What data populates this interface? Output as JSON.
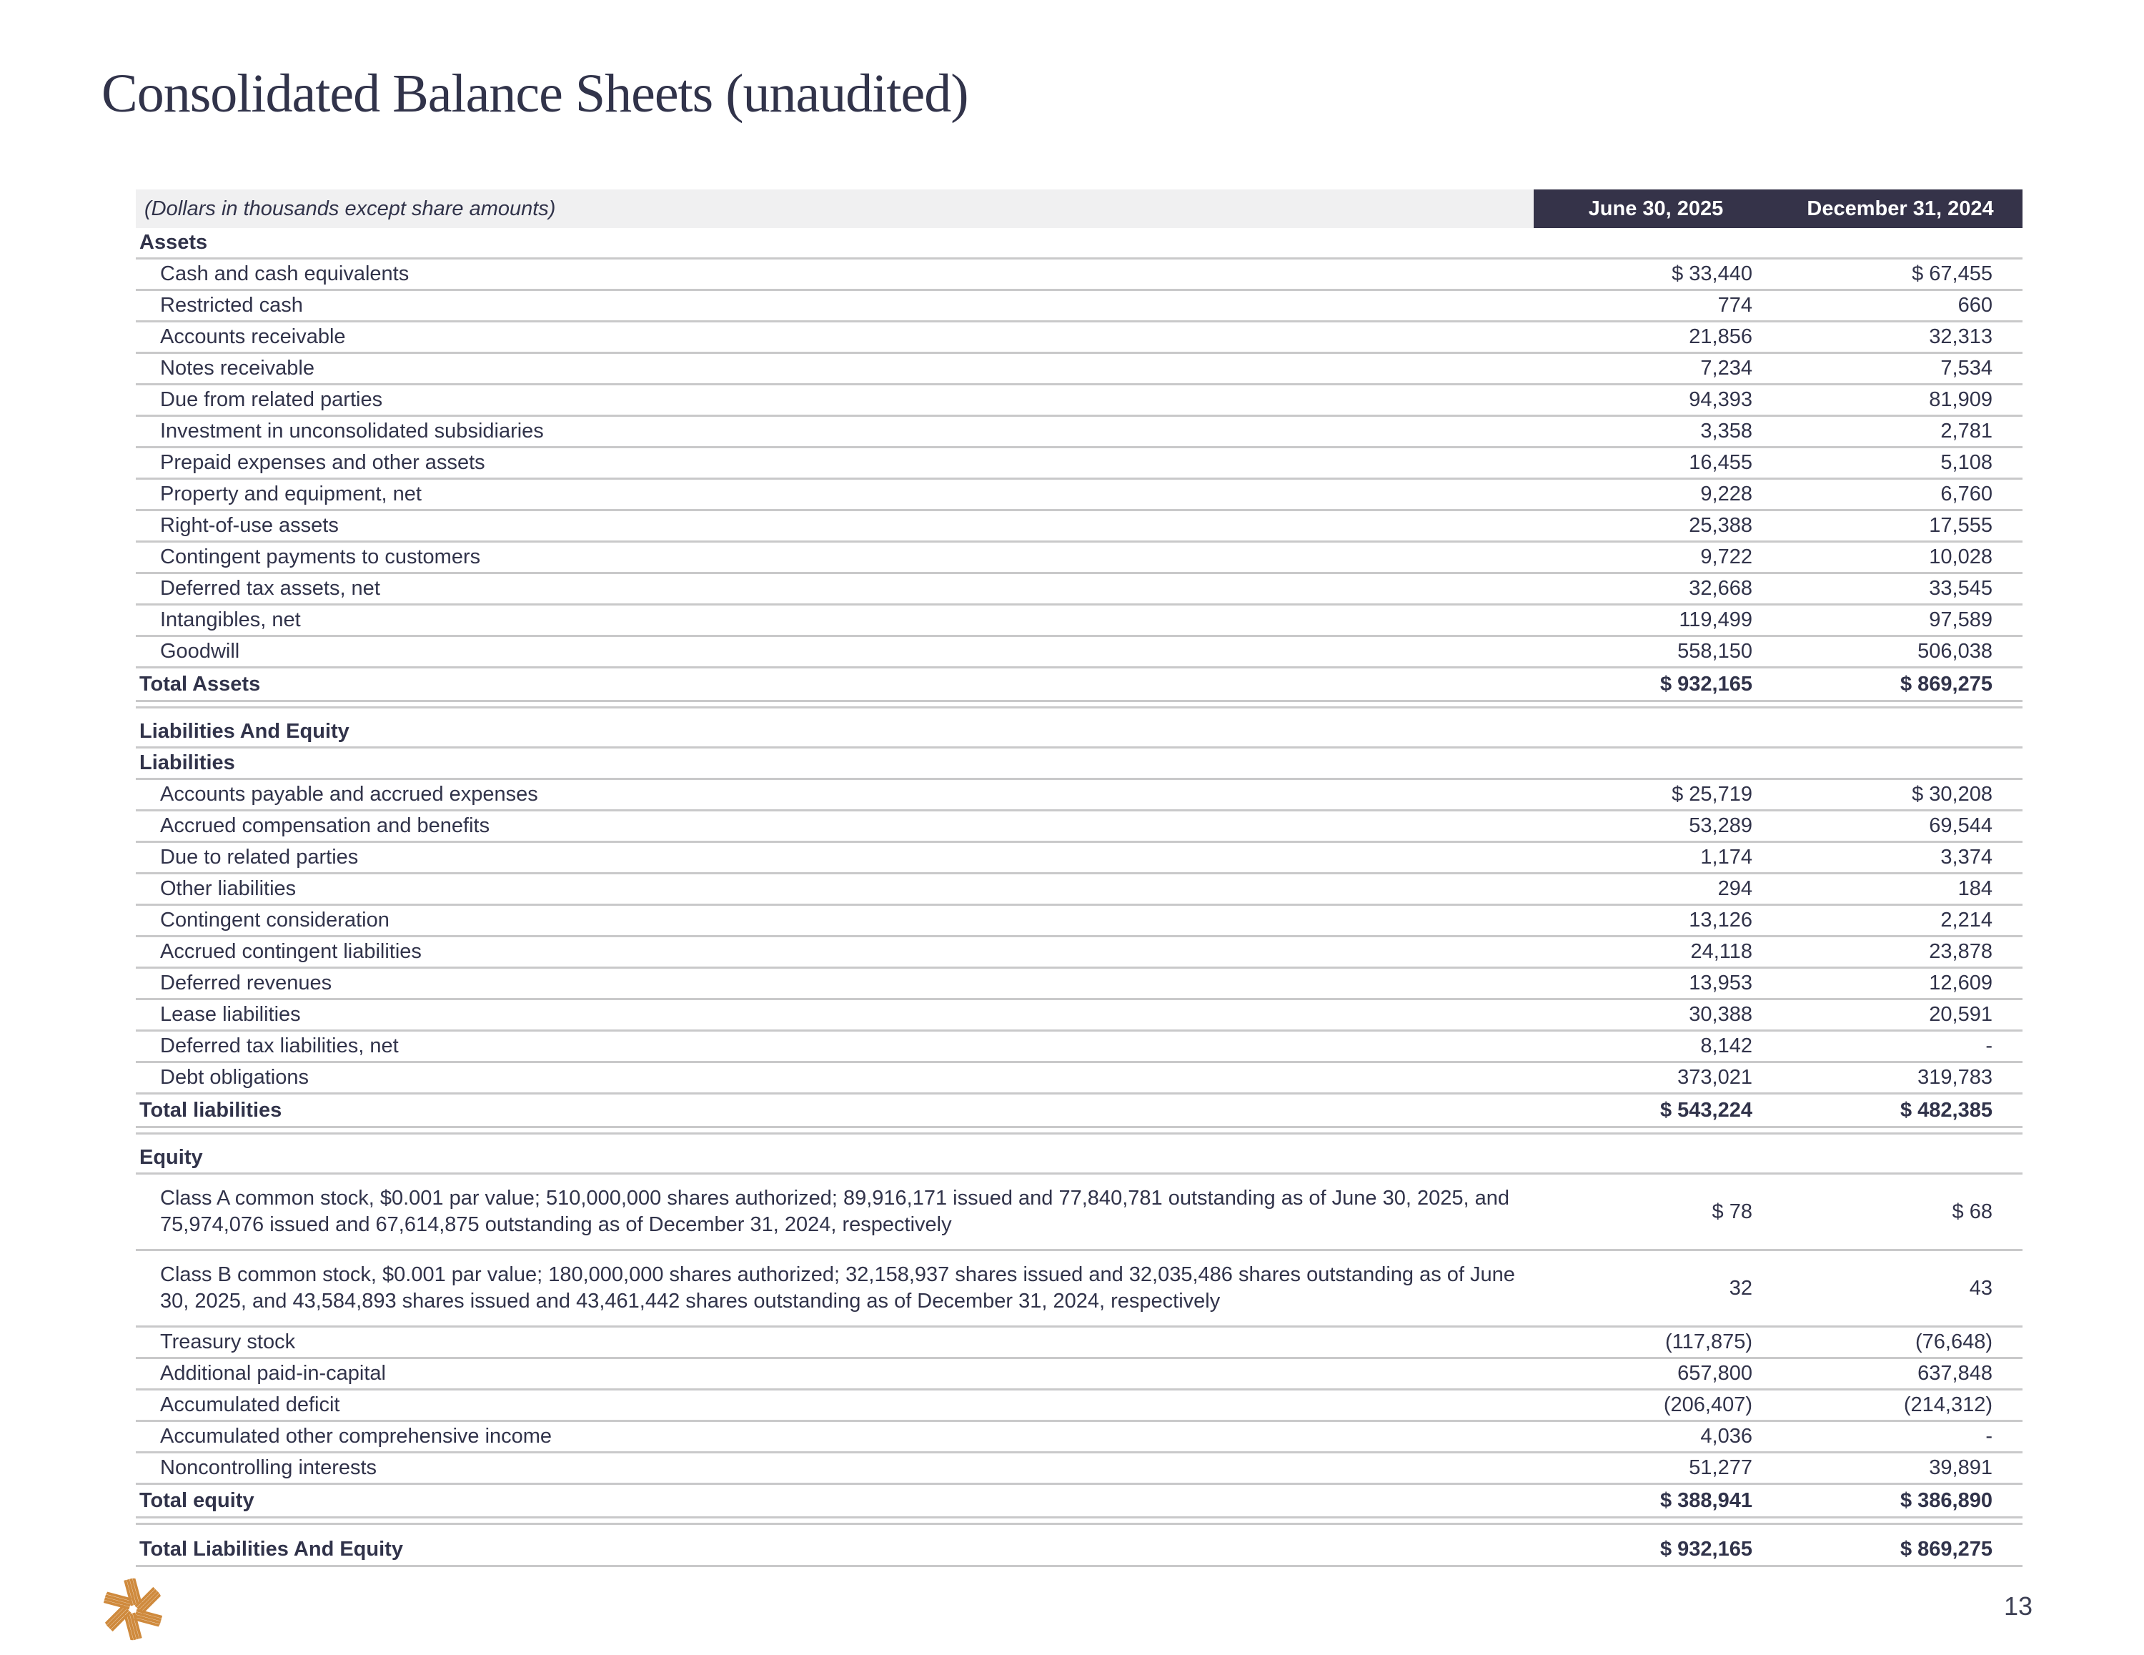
{
  "page": {
    "title": "Consolidated Balance Sheets (unaudited)",
    "page_number": "13"
  },
  "table": {
    "units_note": "(Dollars in thousands except share amounts)",
    "columns": [
      "June 30, 2025",
      "December 31, 2024"
    ],
    "rows": [
      {
        "type": "section",
        "label": "Assets",
        "v1": "",
        "v2": ""
      },
      {
        "type": "item",
        "label": "Cash and cash equivalents",
        "v1": "$ 33,440",
        "v2": "$ 67,455"
      },
      {
        "type": "item",
        "label": "Restricted cash",
        "v1": "774",
        "v2": "660"
      },
      {
        "type": "item",
        "label": "Accounts receivable",
        "v1": "21,856",
        "v2": "32,313"
      },
      {
        "type": "item",
        "label": "Notes receivable",
        "v1": "7,234",
        "v2": "7,534"
      },
      {
        "type": "item",
        "label": "Due from related parties",
        "v1": "94,393",
        "v2": "81,909"
      },
      {
        "type": "item",
        "label": "Investment in unconsolidated subsidiaries",
        "v1": "3,358",
        "v2": "2,781"
      },
      {
        "type": "item",
        "label": "Prepaid expenses and other assets",
        "v1": "16,455",
        "v2": "5,108"
      },
      {
        "type": "item",
        "label": "Property and equipment, net",
        "v1": "9,228",
        "v2": "6,760"
      },
      {
        "type": "item",
        "label": "Right-of-use assets",
        "v1": "25,388",
        "v2": "17,555"
      },
      {
        "type": "item",
        "label": "Contingent payments to customers",
        "v1": "9,722",
        "v2": "10,028"
      },
      {
        "type": "item",
        "label": "Deferred tax assets, net",
        "v1": "32,668",
        "v2": "33,545"
      },
      {
        "type": "item",
        "label": "Intangibles, net",
        "v1": "119,499",
        "v2": "97,589"
      },
      {
        "type": "item",
        "label": "Goodwill",
        "v1": "558,150",
        "v2": "506,038"
      },
      {
        "type": "total",
        "label": "Total Assets",
        "v1": "$ 932,165",
        "v2": "$ 869,275"
      },
      {
        "type": "section",
        "label": "Liabilities And Equity",
        "v1": "",
        "v2": ""
      },
      {
        "type": "section",
        "label": "Liabilities",
        "v1": "",
        "v2": ""
      },
      {
        "type": "item",
        "label": "Accounts payable and accrued expenses",
        "v1": "$ 25,719",
        "v2": "$ 30,208"
      },
      {
        "type": "item",
        "label": "Accrued compensation and benefits",
        "v1": "53,289",
        "v2": "69,544"
      },
      {
        "type": "item",
        "label": "Due to related parties",
        "v1": "1,174",
        "v2": "3,374"
      },
      {
        "type": "item",
        "label": "Other liabilities",
        "v1": "294",
        "v2": "184"
      },
      {
        "type": "item",
        "label": "Contingent consideration",
        "v1": "13,126",
        "v2": "2,214"
      },
      {
        "type": "item",
        "label": "Accrued contingent liabilities",
        "v1": "24,118",
        "v2": "23,878"
      },
      {
        "type": "item",
        "label": "Deferred revenues",
        "v1": "13,953",
        "v2": "12,609"
      },
      {
        "type": "item",
        "label": "Lease liabilities",
        "v1": "30,388",
        "v2": "20,591"
      },
      {
        "type": "item",
        "label": "Deferred tax liabilities, net",
        "v1": "8,142",
        "v2": "-"
      },
      {
        "type": "item",
        "label": "Debt obligations",
        "v1": "373,021",
        "v2": "319,783"
      },
      {
        "type": "total",
        "label": "Total liabilities",
        "v1": "$ 543,224",
        "v2": "$ 482,385"
      },
      {
        "type": "section",
        "label": "Equity",
        "v1": "",
        "v2": ""
      },
      {
        "type": "item2",
        "label": "Class A common stock, $0.001 par value; 510,000,000 shares authorized; 89,916,171 issued and 77,840,781 outstanding as of June 30, 2025, and 75,974,076 issued and 67,614,875 outstanding as of December 31, 2024, respectively",
        "v1": "$ 78",
        "v2": "$ 68"
      },
      {
        "type": "item2",
        "label": "Class B common stock, $0.001 par value; 180,000,000 shares authorized; 32,158,937 shares issued and 32,035,486 shares outstanding as of June 30, 2025, and 43,584,893 shares issued and 43,461,442 shares outstanding as of December 31, 2024, respectively",
        "v1": "32",
        "v2": "43"
      },
      {
        "type": "item",
        "label": "Treasury stock",
        "v1": "(117,875)",
        "v2": "(76,648)"
      },
      {
        "type": "item",
        "label": "Additional paid-in-capital",
        "v1": "657,800",
        "v2": "637,848"
      },
      {
        "type": "item",
        "label": "Accumulated deficit",
        "v1": "(206,407)",
        "v2": "(214,312)"
      },
      {
        "type": "item",
        "label": "Accumulated other comprehensive income",
        "v1": "4,036",
        "v2": "-"
      },
      {
        "type": "item",
        "label": "Noncontrolling interests",
        "v1": "51,277",
        "v2": "39,891"
      },
      {
        "type": "total",
        "label": "Total equity",
        "v1": "$ 388,941",
        "v2": "$ 386,890"
      },
      {
        "type": "grand",
        "label": "Total Liabilities And Equity",
        "v1": "$ 932,165",
        "v2": "$ 869,275"
      }
    ]
  },
  "colors": {
    "ink": "#31334a",
    "header_bg": "#353349",
    "units_band_bg": "#f0f0f1",
    "rule_gray": "#c9c9ca",
    "logo_orange": "#cf8a3d"
  }
}
